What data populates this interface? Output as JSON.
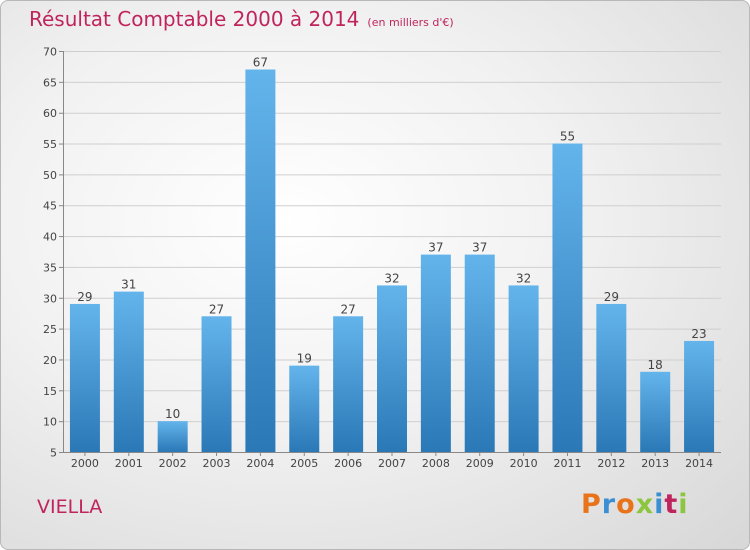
{
  "header": {
    "title": "Résultat Comptable 2000 à 2014",
    "subtitle": "(en milliers d'€)"
  },
  "footer": {
    "town": "VIELLA",
    "logo_text": "Proxiti",
    "logo_colors": [
      "#e8731a",
      "#3a8fd4",
      "#e8731a",
      "#8cc63f",
      "#3a8fd4",
      "#c0245c",
      "#8cc63f"
    ]
  },
  "colors": {
    "title": "#c0245c",
    "bar_top": "#64b4ec",
    "bar_bottom": "#2a78b6"
  },
  "chart_data": {
    "type": "bar",
    "title": "Résultat Comptable 2000 à 2014",
    "xlabel": "",
    "ylabel": "",
    "categories": [
      "2000",
      "2001",
      "2002",
      "2003",
      "2004",
      "2005",
      "2006",
      "2007",
      "2008",
      "2009",
      "2010",
      "2011",
      "2012",
      "2013",
      "2014"
    ],
    "values": [
      29,
      31,
      10,
      27,
      67,
      19,
      27,
      32,
      37,
      37,
      32,
      55,
      29,
      18,
      23
    ],
    "ylim": [
      5,
      70
    ],
    "yticks": [
      5,
      10,
      15,
      20,
      25,
      30,
      35,
      40,
      45,
      50,
      55,
      60,
      65,
      70
    ],
    "grid": true
  }
}
